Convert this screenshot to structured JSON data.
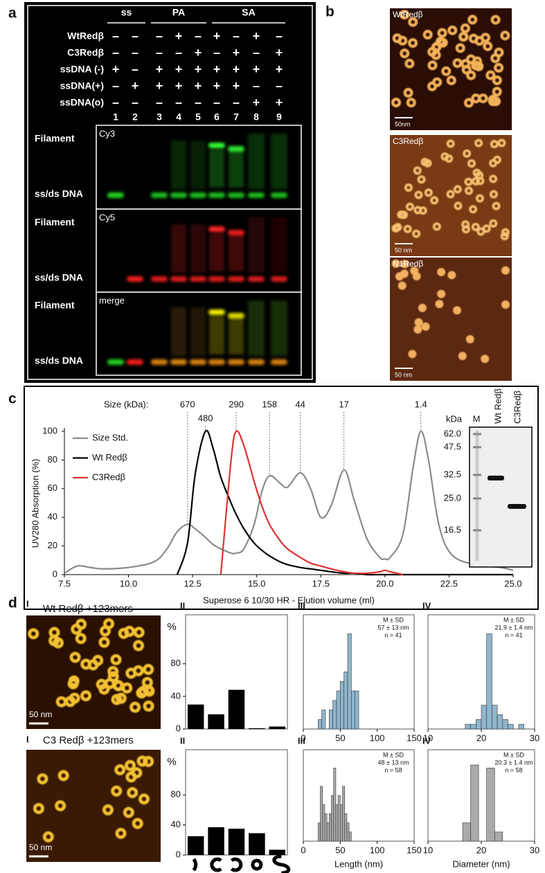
{
  "panel_labels": [
    "a",
    "b",
    "c",
    "d"
  ],
  "gel": {
    "groups": [
      "ss",
      "PA",
      "SA"
    ],
    "rows": [
      {
        "label": "WtRedβ",
        "signs": [
          "–",
          "–",
          "–",
          "+",
          "–",
          "+",
          "–",
          "+",
          "–"
        ]
      },
      {
        "label": "C3Redβ",
        "signs": [
          "–",
          "–",
          "–",
          "–",
          "+",
          "–",
          "+",
          "–",
          "+"
        ]
      },
      {
        "label": "ssDNA (-)",
        "signs": [
          "+",
          "–",
          "+",
          "+",
          "+",
          "+",
          "+",
          "+",
          "+"
        ]
      },
      {
        "label": "ssDNA(+)",
        "signs": [
          "–",
          "+",
          "+",
          "+",
          "+",
          "+",
          "+",
          "–",
          "–"
        ]
      },
      {
        "label": "ssDNA(o)",
        "signs": [
          "–",
          "–",
          "–",
          "–",
          "–",
          "–",
          "–",
          "+",
          "+"
        ]
      }
    ],
    "lanes": [
      1,
      2,
      3,
      4,
      5,
      6,
      7,
      8,
      9
    ],
    "channels": [
      "Cy3",
      "Cy5",
      "merge"
    ],
    "band_labels": [
      "Filament",
      "ss/ds DNA"
    ]
  },
  "afm": {
    "images": [
      {
        "label": "WtRedβ",
        "scale": "50nm"
      },
      {
        "label": "C3Redβ",
        "scale": "50 nm"
      },
      {
        "label": "N1Redβ",
        "scale": "50 nm"
      }
    ]
  },
  "gel_inset": {
    "unit": "kDa",
    "lanes": [
      "M",
      "Wt Redβ",
      "C3Redβ"
    ],
    "markers": [
      "62.0",
      "47.5",
      "32.5",
      "25.0",
      "16.5"
    ]
  },
  "panel_d": {
    "rows": [
      {
        "roman": "I",
        "title": "Wt Redβ +123mers",
        "scale": "50 nm"
      },
      {
        "roman": "I",
        "title": "C3 Redβ +123mers",
        "scale": "50 nm"
      }
    ]
  },
  "chart_data": [
    {
      "type": "line",
      "size_title": "Size (kDa):",
      "size_markers": [
        {
          "x": 12.3,
          "label": "670"
        },
        {
          "x": 13.0,
          "label": "480"
        },
        {
          "x": 14.2,
          "label": "290"
        },
        {
          "x": 15.5,
          "label": "158"
        },
        {
          "x": 16.7,
          "label": "44"
        },
        {
          "x": 18.4,
          "label": "17"
        },
        {
          "x": 21.4,
          "label": "1.4"
        }
      ],
      "xlabel": "Superose 6 10/30 HR - Elution volume (ml)",
      "ylabel": "UV280 Absorption (%)",
      "x": [
        7.5,
        8,
        8.5,
        9,
        10,
        11,
        11.5,
        11.9,
        12.3,
        12.6,
        13,
        13.3,
        13.6,
        14,
        14.2,
        14.5,
        14.9,
        15.2,
        15.5,
        15.9,
        16.2,
        16.7,
        17.1,
        17.5,
        17.9,
        18.4,
        18.8,
        19.3,
        19.8,
        20,
        20.2,
        20.7,
        21.1,
        21.4,
        21.7,
        22.1,
        22.6,
        23.5,
        24.5,
        25
      ],
      "series": [
        {
          "name": "Size Std.",
          "color": "#8a8a8a",
          "values": [
            1,
            6,
            5,
            4,
            5,
            9,
            18,
            30,
            35,
            32,
            26,
            21,
            18,
            15,
            15,
            18,
            35,
            58,
            69,
            64,
            61,
            71,
            60,
            40,
            48,
            73,
            52,
            25,
            12,
            11,
            12,
            28,
            75,
            100,
            80,
            35,
            14,
            7,
            5,
            3
          ]
        },
        {
          "name": "Wt Redβ",
          "color": "#000000",
          "values": [
            null,
            null,
            null,
            null,
            null,
            null,
            null,
            0,
            22,
            70,
            100,
            88,
            68,
            50,
            42,
            32,
            22,
            17,
            13,
            9,
            7,
            5,
            4,
            3,
            2,
            1,
            1,
            0,
            0,
            0,
            0,
            0,
            0,
            0,
            0,
            0,
            0,
            0,
            0,
            0
          ]
        },
        {
          "name": "C3Redβ",
          "color": "#e03030",
          "values": [
            null,
            null,
            null,
            null,
            null,
            null,
            null,
            null,
            null,
            null,
            null,
            null,
            0,
            80,
            100,
            90,
            65,
            48,
            35,
            24,
            18,
            12,
            8,
            6,
            4,
            2,
            1,
            1,
            2,
            3,
            2,
            0,
            null,
            null,
            null,
            null,
            null,
            null,
            null,
            null
          ]
        }
      ],
      "xlim": [
        7.5,
        25
      ],
      "xticks": [
        7.5,
        {
          "value": 10,
          "label": "10.0"
        },
        12.5,
        {
          "value": 15,
          "label": "15.0"
        },
        17.5,
        {
          "value": 20,
          "label": "20.0"
        },
        22.5,
        {
          "value": 25,
          "label": "25.0"
        }
      ],
      "ylim": [
        0,
        100
      ],
      "yticks": [
        0,
        20,
        40,
        60,
        80,
        100
      ]
    },
    {
      "type": "bar",
      "title": "II",
      "ylabel": "%",
      "categories": [
        null,
        null,
        null,
        null,
        null
      ],
      "values": [
        30,
        18,
        48,
        1,
        3
      ],
      "color": "#000000",
      "ylim": [
        0,
        140
      ],
      "yticks": [
        0,
        40,
        80
      ]
    },
    {
      "type": "histogram",
      "title": "III",
      "annotations": [
        "M ± SD",
        "57 ± 13 nm",
        "n = 41"
      ],
      "bins": [
        20,
        25,
        30,
        35,
        40,
        45,
        50,
        55,
        60,
        65,
        70,
        75
      ],
      "values": [
        1,
        2,
        0,
        2,
        3,
        4,
        5,
        6,
        10,
        4,
        4
      ],
      "color": "#8fb6cc",
      "xlim": [
        0,
        150
      ],
      "xticks": [
        0,
        50,
        100,
        150
      ],
      "ylim": [
        0,
        12
      ]
    },
    {
      "type": "histogram",
      "title": "IV",
      "annotations": [
        "M ± SD",
        "21.9 ± 1.4 nm",
        "n = 41"
      ],
      "bins": [
        17,
        18,
        19,
        20,
        21,
        22,
        23,
        24,
        25,
        26,
        27,
        28
      ],
      "values": [
        1,
        1,
        2,
        5,
        20,
        5,
        3,
        2,
        1,
        0,
        1
      ],
      "color": "#8fb6cc",
      "xlim": [
        10,
        30
      ],
      "xticks": [
        10,
        20,
        30
      ],
      "ylim": [
        0,
        24
      ]
    },
    {
      "type": "bar",
      "title": "II",
      "ylabel": "%",
      "categories": [
        null,
        null,
        null,
        null,
        null
      ],
      "values": [
        25,
        37,
        35,
        29,
        7
      ],
      "color": "#000000",
      "ylim": [
        0,
        140
      ],
      "yticks": [
        0,
        40,
        80
      ]
    },
    {
      "type": "histogram",
      "title": "III",
      "xlabel": "Length (nm)",
      "annotations": [
        "M ± SD",
        "48 ± 13 nm",
        "n = 58"
      ],
      "bins": [
        20,
        23,
        26,
        29,
        32,
        35,
        38,
        41,
        44,
        47,
        50,
        53,
        56,
        59,
        62,
        65
      ],
      "values": [
        2,
        6,
        4,
        3,
        2,
        3,
        5,
        8,
        4,
        5,
        4,
        6,
        3,
        2,
        1
      ],
      "color": "#aaaaaa",
      "xlim": [
        0,
        150
      ],
      "xticks": [
        0,
        50,
        100,
        150
      ],
      "ylim": [
        0,
        10
      ]
    },
    {
      "type": "histogram",
      "title": "IV",
      "xlabel": "Diameter (nm)",
      "annotations": [
        "M ± SD",
        "20.3 ± 1.4 nm",
        "n = 58"
      ],
      "bins": [
        16.5,
        18,
        19.5,
        21,
        22.5,
        24
      ],
      "values": [
        6,
        25,
        0,
        24,
        3
      ],
      "color": "#aaaaaa",
      "xlim": [
        10,
        30
      ],
      "xticks": [
        10,
        20,
        30
      ],
      "ylim": [
        0,
        30
      ]
    }
  ]
}
